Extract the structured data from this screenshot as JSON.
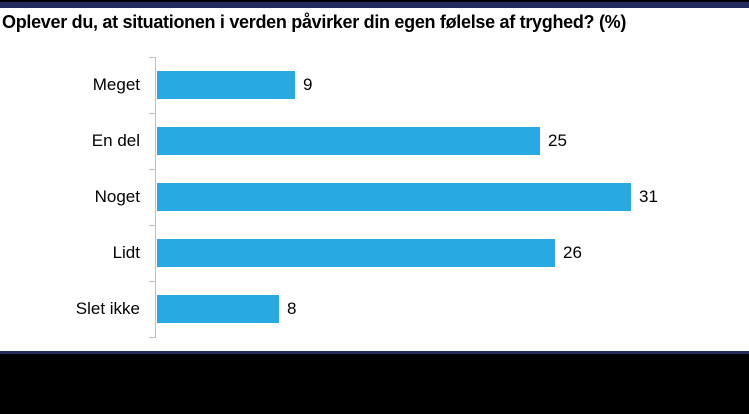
{
  "title": "Oplever du, at situationen i verden påvirker din egen følelse af tryghed? (%)",
  "chart_data": {
    "type": "bar",
    "orientation": "horizontal",
    "title": "Oplever du, at situationen i verden påvirker din egen følelse af tryghed? (%)",
    "categories": [
      "Meget",
      "En del",
      "Noget",
      "Lidt",
      "Slet ikke"
    ],
    "values": [
      9,
      25,
      31,
      26,
      8
    ],
    "xlabel": "",
    "ylabel": "",
    "xlim": [
      0,
      35
    ],
    "grid": false,
    "legend": "none",
    "value_labels_shown": true,
    "bar_color": "#29A9E1"
  },
  "colors": {
    "bar_blue": "#29A9E1",
    "accent_navy": "#222B5C",
    "axis_gray": "#BFBFBF",
    "footer_black": "#000000",
    "background": "#FFFFFF"
  }
}
